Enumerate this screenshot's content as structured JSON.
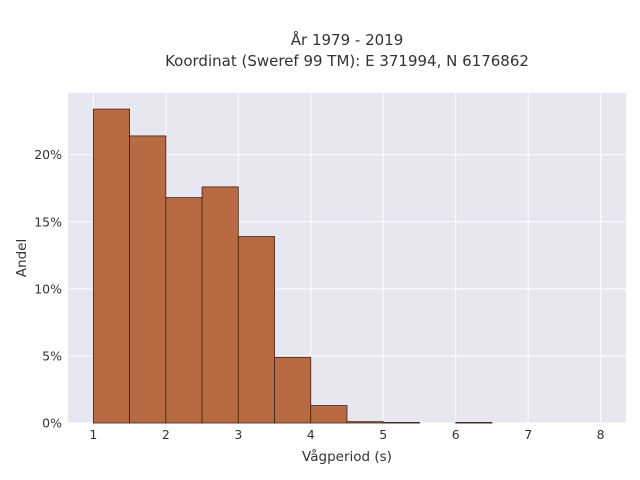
{
  "chart_data": {
    "type": "bar",
    "title_lines": [
      "År 1979 - 2019",
      "Koordinat (Sweref 99 TM): E 371994, N 6176862"
    ],
    "xlabel": "Vågperiod (s)",
    "ylabel": "Andel",
    "x_ticks": [
      "1",
      "2",
      "3",
      "4",
      "5",
      "6",
      "7",
      "8"
    ],
    "y_ticks": [
      "0%",
      "5%",
      "10%",
      "15%",
      "20%"
    ],
    "xlim": [
      0.65,
      8.35
    ],
    "ylim": [
      0,
      24.6
    ],
    "bin_width": 0.5,
    "bins": [
      {
        "start": 1.0,
        "end": 1.5,
        "value": 23.4
      },
      {
        "start": 1.5,
        "end": 2.0,
        "value": 21.4
      },
      {
        "start": 2.0,
        "end": 2.5,
        "value": 16.8
      },
      {
        "start": 2.5,
        "end": 3.0,
        "value": 17.6
      },
      {
        "start": 3.0,
        "end": 3.5,
        "value": 13.9
      },
      {
        "start": 3.5,
        "end": 4.0,
        "value": 4.9
      },
      {
        "start": 4.0,
        "end": 4.5,
        "value": 1.3
      },
      {
        "start": 4.5,
        "end": 5.0,
        "value": 0.1
      },
      {
        "start": 5.0,
        "end": 5.5,
        "value": 0.04
      },
      {
        "start": 5.5,
        "end": 6.0,
        "value": 0.0
      },
      {
        "start": 6.0,
        "end": 6.5,
        "value": 0.04
      }
    ],
    "grid": true,
    "colors": {
      "bar_fill": "#b86b43",
      "bar_stroke": "#3d2414",
      "plot_bg": "#e6e7f0",
      "grid": "#ffffff",
      "text": "#333333"
    }
  }
}
